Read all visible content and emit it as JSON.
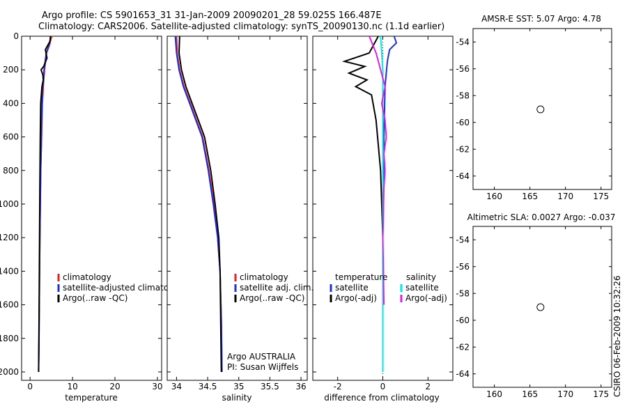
{
  "header": {
    "line1": "Argo profile: CS 5901653_31 31-Jan-2009 20090201_28 59.025S 166.487E",
    "line2": "Climatology: CARS2006. Satellite-adjusted climatology: synTS_20090130.nc (1.1d earlier)"
  },
  "footer_stamp": "CSIRO 06-Feb-2009 10:32:26",
  "colors": {
    "climatology": "#e8201e",
    "satellite": "#1f2fd8",
    "argo": "#000000",
    "satellite_diff": "#00e8e8",
    "argo_diff_sal": "#e020e0"
  },
  "chart_data": [
    {
      "id": "temperature",
      "type": "line",
      "xlabel": "temperature",
      "ylabel": "",
      "xlim": [
        -2,
        31
      ],
      "ylim": [
        2050,
        0
      ],
      "xticks": [
        0,
        10,
        20,
        30
      ],
      "yticks": [
        0,
        200,
        400,
        600,
        800,
        1000,
        1200,
        1400,
        1600,
        1800,
        2000
      ],
      "legend": [
        "climatology",
        "satellite-adjusted climatology",
        "Argo(..raw -QC)"
      ],
      "series": [
        {
          "name": "climatology",
          "color": "climatology",
          "x": [
            5.1,
            4.6,
            3.9,
            3.4,
            3.1,
            2.9,
            2.7,
            2.5,
            2.4,
            2.3,
            2.2,
            2.1,
            2.0
          ],
          "y": [
            0,
            50,
            100,
            200,
            300,
            400,
            600,
            800,
            1000,
            1200,
            1500,
            1800,
            2000
          ]
        },
        {
          "name": "satellite-adjusted climatology",
          "color": "satellite",
          "x": [
            4.9,
            4.5,
            3.8,
            3.3,
            3.0,
            2.8,
            2.7,
            2.5,
            2.4,
            2.3,
            2.2,
            2.1,
            2.0
          ],
          "y": [
            0,
            50,
            100,
            200,
            300,
            400,
            600,
            800,
            1000,
            1200,
            1500,
            1800,
            2000
          ]
        },
        {
          "name": "Argo(..raw -QC)",
          "color": "argo",
          "x": [
            4.8,
            4.7,
            3.6,
            4.0,
            3.2,
            2.6,
            3.0,
            3.1,
            2.8,
            2.5,
            2.4,
            2.3,
            2.2,
            2.1,
            2.0
          ],
          "y": [
            0,
            30,
            80,
            130,
            180,
            200,
            230,
            260,
            300,
            400,
            600,
            900,
            1300,
            1700,
            2000
          ]
        }
      ]
    },
    {
      "id": "salinity",
      "type": "line",
      "xlabel": "salinity",
      "xlim": [
        33.85,
        36.1
      ],
      "ylim": [
        2050,
        0
      ],
      "xticks": [
        34,
        34.5,
        35,
        35.5,
        36
      ],
      "legend": [
        "climatology",
        "satellite adj. clim.",
        "Argo(..raw -QC)"
      ],
      "annotation": [
        "Argo AUSTRALIA",
        "PI: Susan Wijffels"
      ],
      "series": [
        {
          "name": "climatology",
          "color": "climatology",
          "x": [
            34.0,
            34.01,
            34.05,
            34.12,
            34.22,
            34.32,
            34.42,
            34.52,
            34.6,
            34.66,
            34.7,
            34.72,
            34.73
          ],
          "y": [
            0,
            100,
            200,
            300,
            400,
            500,
            600,
            800,
            1000,
            1200,
            1400,
            1700,
            2000
          ]
        },
        {
          "name": "satellite adj. clim.",
          "color": "satellite",
          "x": [
            33.98,
            34.0,
            34.04,
            34.11,
            34.21,
            34.31,
            34.41,
            34.51,
            34.59,
            34.66,
            34.7,
            34.72,
            34.73
          ],
          "y": [
            0,
            100,
            200,
            300,
            400,
            500,
            600,
            800,
            1000,
            1200,
            1400,
            1700,
            2000
          ]
        },
        {
          "name": "Argo(..raw -QC)",
          "color": "argo",
          "x": [
            34.05,
            34.04,
            34.08,
            34.15,
            34.25,
            34.35,
            34.45,
            34.55,
            34.62,
            34.68,
            34.7,
            34.71,
            34.72
          ],
          "y": [
            0,
            100,
            200,
            300,
            400,
            500,
            600,
            800,
            1000,
            1200,
            1400,
            1700,
            2000
          ]
        }
      ]
    },
    {
      "id": "difference",
      "type": "line",
      "xlabel": "difference from climatology",
      "xlim": [
        -3.1,
        3.1
      ],
      "ylim": [
        2050,
        0
      ],
      "xticks": [
        -2,
        0,
        2
      ],
      "legend_left_title": "temperature",
      "legend_right_title": "salinity",
      "legend_left": [
        "satellite",
        "Argo(-adj)"
      ],
      "legend_right": [
        "satellite",
        "Argo(-adj)"
      ],
      "series": [
        {
          "name": "temperature satellite",
          "color": "satellite",
          "x": [
            0.5,
            0.6,
            0.3,
            0.2,
            0.1,
            0.05,
            0.0,
            0.0
          ],
          "y": [
            0,
            40,
            80,
            150,
            300,
            600,
            1200,
            2000
          ]
        },
        {
          "name": "temperature Argo(-adj)",
          "color": "argo",
          "x": [
            -0.2,
            -0.6,
            -1.7,
            -0.8,
            -1.5,
            -0.7,
            -1.2,
            -0.5,
            -0.3,
            -0.1,
            0.0,
            0.0
          ],
          "y": [
            0,
            100,
            150,
            180,
            220,
            260,
            300,
            350,
            500,
            800,
            1200,
            1800
          ]
        },
        {
          "name": "salinity satellite",
          "color": "satellite_diff",
          "x": [
            -0.1,
            0.0,
            0.0,
            0.0,
            0.0
          ],
          "y": [
            0,
            200,
            600,
            1200,
            2000
          ]
        },
        {
          "name": "salinity Argo(-adj)",
          "color": "argo_diff_sal",
          "x": [
            -0.6,
            -0.3,
            -0.1,
            0.1,
            -0.05,
            0.1,
            0.15,
            0.05,
            0.1,
            0.05,
            0.0,
            0.05
          ],
          "y": [
            0,
            100,
            200,
            300,
            400,
            500,
            600,
            700,
            800,
            900,
            1200,
            1600
          ]
        }
      ]
    },
    {
      "id": "sst-map",
      "type": "heatmap",
      "title": "AMSR-E SST: 5.07 Argo: 4.78",
      "xlim": [
        157,
        176.5
      ],
      "ylim": [
        -65,
        -53
      ],
      "xticks": [
        160,
        165,
        170,
        175
      ],
      "yticks": [
        -54,
        -56,
        -58,
        -60,
        -62,
        -64
      ],
      "data_extent_lat": [
        -60.2,
        -53
      ],
      "marker": {
        "lon": 166.487,
        "lat": -59.025
      }
    },
    {
      "id": "sla-map",
      "type": "heatmap",
      "title": "Altimetric SLA: 0.0027 Argo: -0.037",
      "xlim": [
        157,
        176.5
      ],
      "ylim": [
        -65,
        -53
      ],
      "xticks": [
        160,
        165,
        170,
        175
      ],
      "yticks": [
        -54,
        -56,
        -58,
        -60,
        -62,
        -64
      ],
      "data_extent_lat": [
        -60.2,
        -53
      ],
      "marker": {
        "lon": 166.487,
        "lat": -59.025
      }
    }
  ]
}
